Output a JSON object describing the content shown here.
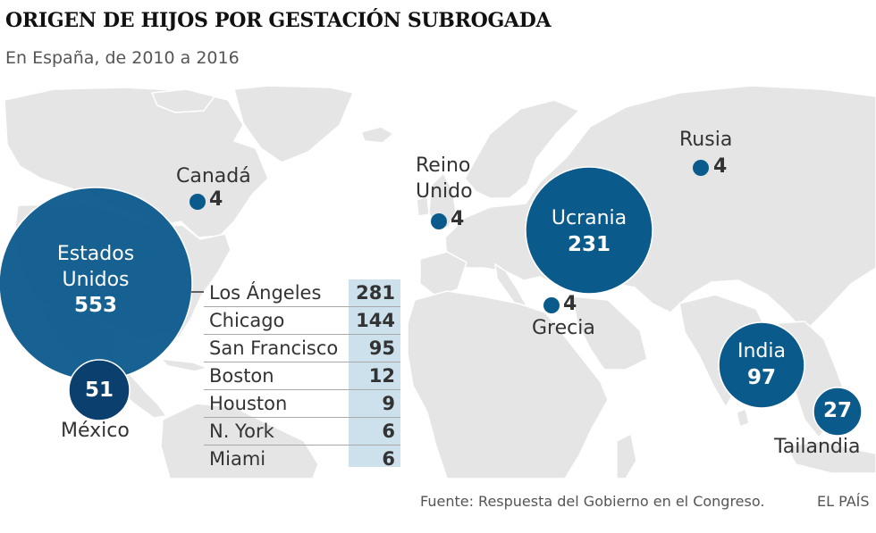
{
  "title": "ORIGEN DE HIJOS POR GESTACIÓN SUBROGADA",
  "subtitle": "En España, de 2010 a 2016",
  "colors": {
    "bubble": "#0b5a8c",
    "land": "#e5e5e5",
    "table_highlight": "#cde1ec"
  },
  "countries": {
    "usa": {
      "name_line1": "Estados",
      "name_line2": "Unidos",
      "value": "553"
    },
    "mexico": {
      "name": "México",
      "value": "51"
    },
    "canada": {
      "name": "Canadá",
      "value": "4"
    },
    "uk": {
      "name_line1": "Reino",
      "name_line2": "Unido",
      "value": "4"
    },
    "ukraine": {
      "name": "Ucrania",
      "value": "231"
    },
    "russia": {
      "name": "Rusia",
      "value": "4"
    },
    "greece": {
      "name": "Grecia",
      "value": "4"
    },
    "india": {
      "name": "India",
      "value": "97"
    },
    "thailand": {
      "name": "Tailandia",
      "value": "27"
    }
  },
  "us_cities": [
    {
      "city": "Los Ángeles",
      "value": "281"
    },
    {
      "city": "Chicago",
      "value": "144"
    },
    {
      "city": "San Francisco",
      "value": "95"
    },
    {
      "city": "Boston",
      "value": "12"
    },
    {
      "city": "Houston",
      "value": "9"
    },
    {
      "city": "N. York",
      "value": "6"
    },
    {
      "city": "Miami",
      "value": "6"
    }
  ],
  "source": "Fuente: Respuesta del Gobierno en el Congreso.",
  "brand": "EL PAÍS"
}
